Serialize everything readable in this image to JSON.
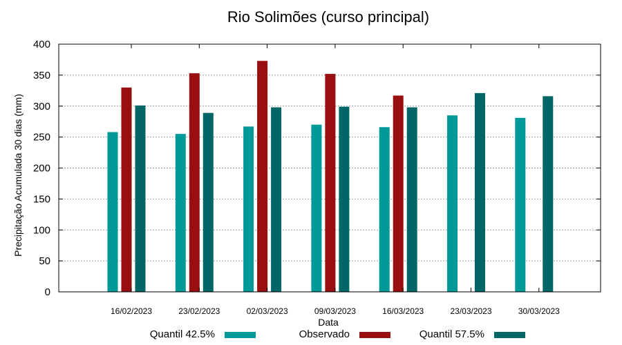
{
  "chart_data": {
    "type": "bar",
    "title": "Rio Solimões (curso principal)",
    "xlabel": "Data",
    "ylabel": "Precipitação Acumulada 30 dias (mm)",
    "ylim": [
      0,
      400
    ],
    "yticks": [
      0,
      50,
      100,
      150,
      200,
      250,
      300,
      350,
      400
    ],
    "grid": true,
    "legend_position": "bottom",
    "categories": [
      "16/02/2023",
      "23/02/2023",
      "02/03/2023",
      "09/03/2023",
      "16/03/2023",
      "23/03/2023",
      "30/03/2023"
    ],
    "series": [
      {
        "name": "Quantil 42.5%",
        "color": "#009999",
        "values": [
          258,
          255,
          267,
          270,
          266,
          285,
          281
        ]
      },
      {
        "name": "Observado",
        "color": "#990f0f",
        "values": [
          330,
          353,
          373,
          352,
          317,
          null,
          null
        ]
      },
      {
        "name": "Quantil 57.5%",
        "color": "#006666",
        "values": [
          301,
          289,
          298,
          299,
          298,
          321,
          316
        ]
      }
    ]
  }
}
